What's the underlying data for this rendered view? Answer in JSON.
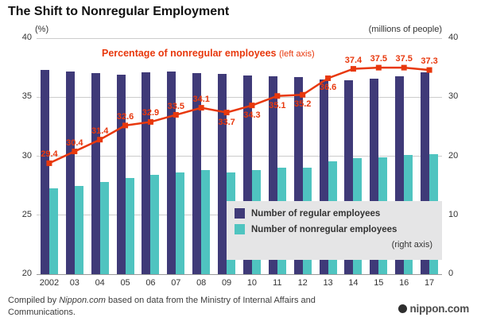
{
  "title": "The Shift to Nonregular Employment",
  "left_axis": {
    "unit": "(%)",
    "ticks": [
      40,
      35,
      30,
      25,
      20
    ]
  },
  "right_axis": {
    "unit": "(millions of people)",
    "ticks": [
      40,
      30,
      20,
      10,
      0
    ]
  },
  "line_label": {
    "text": "Percentage of nonregular employees",
    "axis_note": "(left axis)"
  },
  "legend": {
    "items": [
      {
        "label": "Number of regular employees",
        "color": "#3f3a78"
      },
      {
        "label": "Number of nonregular employees",
        "color": "#4fc4c0"
      }
    ],
    "axis_note": "(right axis)"
  },
  "footer": {
    "source_prefix": "Compiled by ",
    "source_brand": "Nippon.com",
    "source_rest": " based on data from the Ministry of Internal Affairs and Communications.",
    "logo_text": "nippon.com"
  },
  "colors": {
    "regular_bar": "#3f3a78",
    "nonregular_bar": "#4fc4c0",
    "line": "#e8380d",
    "grid": "#cccccc",
    "axis_text": "#333333",
    "legend_bg": "#e5e5e6"
  },
  "chart_data": {
    "type": "bar",
    "title": "The Shift to Nonregular Employment",
    "categories": [
      "2002",
      "03",
      "04",
      "05",
      "06",
      "07",
      "08",
      "09",
      "10",
      "11",
      "12",
      "13",
      "14",
      "15",
      "16",
      "17"
    ],
    "series": [
      {
        "name": "Number of regular employees",
        "type": "bar",
        "axis": "right",
        "unit": "millions of people",
        "values": [
          34.6,
          34.4,
          34.1,
          33.8,
          34.2,
          34.4,
          34.1,
          34.0,
          33.7,
          33.5,
          33.4,
          33.0,
          32.8,
          33.1,
          33.6,
          34.2
        ]
      },
      {
        "name": "Number of nonregular employees",
        "type": "bar",
        "axis": "right",
        "unit": "millions of people",
        "values": [
          14.5,
          15.0,
          15.6,
          16.3,
          16.8,
          17.3,
          17.7,
          17.2,
          17.6,
          18.1,
          18.1,
          19.1,
          19.6,
          19.8,
          20.2,
          20.4
        ]
      },
      {
        "name": "Percentage of nonregular employees",
        "type": "line",
        "axis": "left",
        "unit": "%",
        "values": [
          29.4,
          30.4,
          31.4,
          32.6,
          32.9,
          33.5,
          34.1,
          33.7,
          34.3,
          35.1,
          35.2,
          36.6,
          37.4,
          37.5,
          37.5,
          37.3
        ]
      }
    ],
    "point_label_positions": [
      "above",
      "above",
      "above",
      "above",
      "above",
      "above",
      "above",
      "below",
      "below",
      "below",
      "below",
      "below",
      "above",
      "above",
      "above",
      "above"
    ],
    "left_ylim": [
      20,
      40
    ],
    "right_ylim": [
      0,
      40
    ],
    "grid": true,
    "legend_position": "inside-right"
  }
}
